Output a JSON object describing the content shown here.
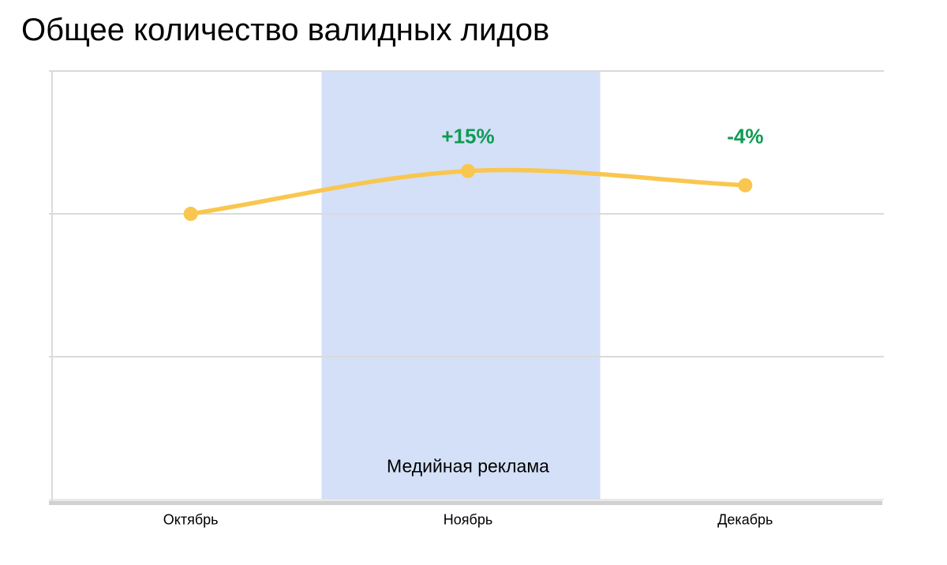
{
  "page": {
    "title": "Общее количество валидных лидов"
  },
  "chart_data": {
    "type": "line",
    "title": "Общее количество валидных лидов",
    "categories": [
      "Октябрь",
      "Ноябрь",
      "Декабрь"
    ],
    "values": [
      100,
      115,
      110
    ],
    "point_labels": [
      "",
      "+15%",
      "-4%"
    ],
    "xlabel": "",
    "ylabel": "",
    "ylim": [
      0,
      150
    ],
    "gridlines_y": [
      50,
      100
    ],
    "y_tick_labels_visible": false,
    "legend": "none",
    "highlight_band": {
      "label": "Медийная реклама",
      "x_start_fraction": 0.324,
      "x_end_fraction": 0.659,
      "color": "#D4E0F7"
    },
    "colors": {
      "line": "#F9C64F",
      "point": "#F9C64F",
      "annotation_text": "#0F9B55",
      "gridline": "#DADADA",
      "axis_bar": "#D1D1D1",
      "baseline": "#E3E3E3",
      "title_text": "#000000",
      "label_text": "#000000",
      "background": "#FFFFFF"
    }
  }
}
